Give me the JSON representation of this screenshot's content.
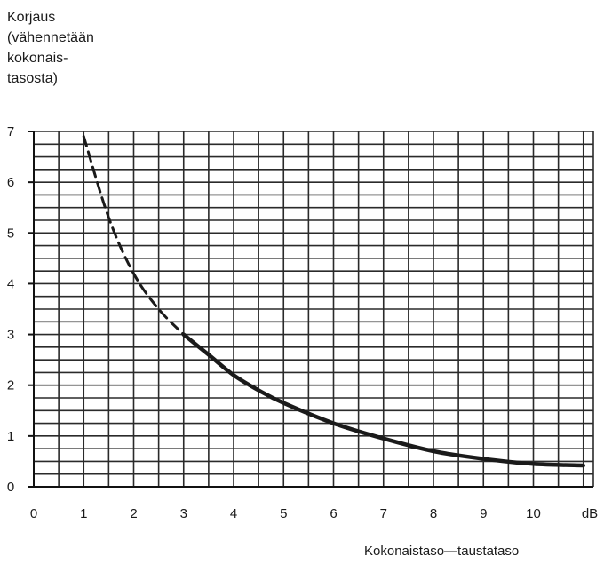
{
  "chart_data": {
    "type": "line",
    "ylabel_lines": [
      "Korjaus",
      "(vähennetään",
      "kokonais-",
      "tasosta)"
    ],
    "xlabel": "Kokonaistaso—taustataso",
    "x_unit": "dB",
    "xlim": [
      0,
      11.2
    ],
    "ylim": [
      0,
      7
    ],
    "x_ticks": [
      "0",
      "1",
      "2",
      "3",
      "4",
      "5",
      "6",
      "7",
      "8",
      "9",
      "10"
    ],
    "y_ticks": [
      "0",
      "1",
      "2",
      "3",
      "4",
      "5",
      "6",
      "7"
    ],
    "grid": true,
    "series": [
      {
        "style": "dashed",
        "x": [
          1,
          1.5,
          2,
          2.5,
          3
        ],
        "y": [
          6.9,
          5.3,
          4.2,
          3.5,
          3.0
        ]
      },
      {
        "style": "solid",
        "x": [
          3,
          3.5,
          4,
          4.5,
          5,
          6,
          7,
          8,
          9,
          10,
          11
        ],
        "y": [
          3.0,
          2.6,
          2.2,
          1.9,
          1.65,
          1.25,
          0.95,
          0.7,
          0.55,
          0.45,
          0.42
        ]
      }
    ]
  }
}
